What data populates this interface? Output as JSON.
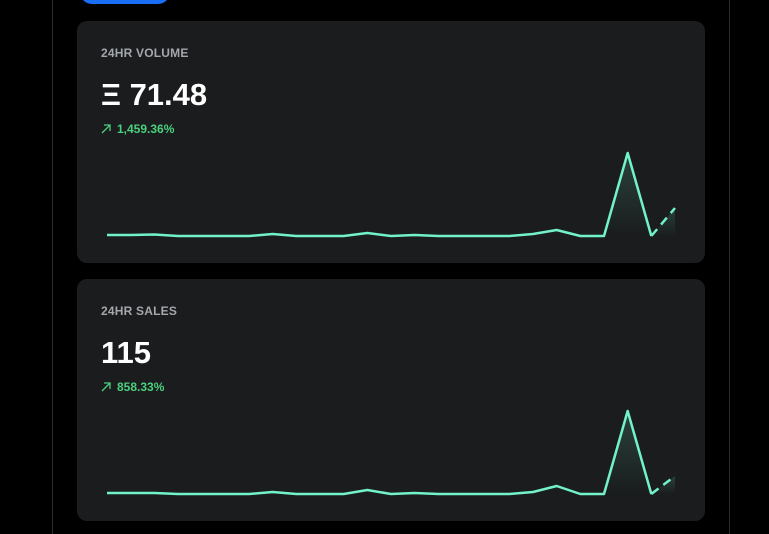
{
  "cards": [
    {
      "label": "24HR VOLUME",
      "value": "Ξ 71.48",
      "change": "1,459.36%",
      "sparkline": {
        "type": "line",
        "color": "#72f2c6",
        "values": [
          1,
          1,
          1.5,
          0,
          0,
          0,
          0,
          2,
          0,
          0,
          0,
          3,
          0,
          1,
          0,
          0,
          0,
          0,
          2,
          6,
          0,
          0,
          83,
          0,
          null
        ],
        "projected": [
          null,
          null,
          null,
          null,
          null,
          null,
          null,
          null,
          null,
          null,
          null,
          null,
          null,
          null,
          null,
          null,
          null,
          null,
          null,
          null,
          null,
          null,
          null,
          0,
          28
        ]
      }
    },
    {
      "label": "24HR SALES",
      "value": "115",
      "change": "858.33%",
      "sparkline": {
        "type": "line",
        "color": "#72f2c6",
        "values": [
          1,
          1,
          1,
          0,
          0,
          0,
          0,
          2,
          0,
          0,
          0,
          4,
          0,
          1,
          0,
          0,
          0,
          0,
          2,
          8,
          0,
          0,
          83,
          0,
          null
        ],
        "projected": [
          null,
          null,
          null,
          null,
          null,
          null,
          null,
          null,
          null,
          null,
          null,
          null,
          null,
          null,
          null,
          null,
          null,
          null,
          null,
          null,
          null,
          null,
          null,
          0,
          18
        ]
      }
    }
  ]
}
